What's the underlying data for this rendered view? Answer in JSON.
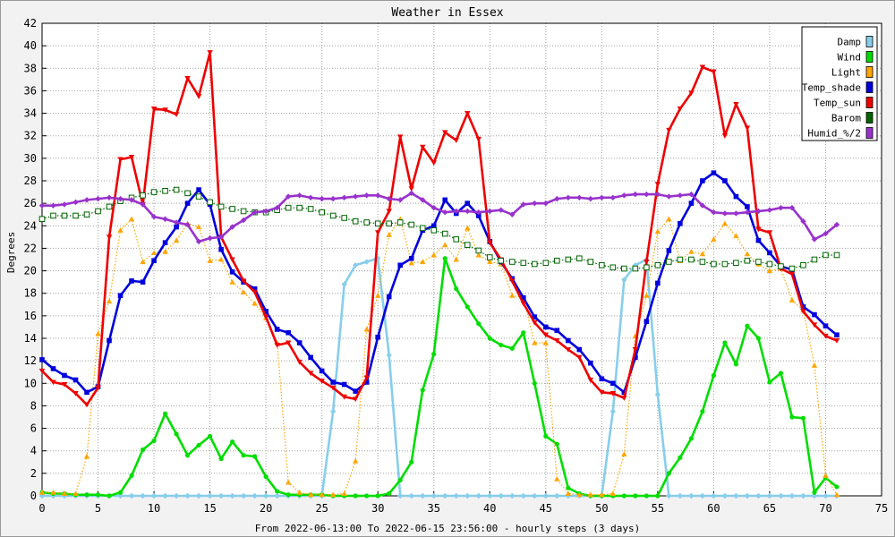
{
  "chart_data": {
    "type": "line",
    "title": "Weather in Essex",
    "xlabel": "From 2022-06-13:00 To 2022-06-15 23:56:00 - hourly steps (3 days)",
    "ylabel": "Degrees",
    "xlim": [
      0,
      75
    ],
    "ylim": [
      0,
      42
    ],
    "xticks": [
      0,
      5,
      10,
      15,
      20,
      25,
      30,
      35,
      40,
      45,
      50,
      55,
      60,
      65,
      70,
      75
    ],
    "yticks": [
      0,
      2,
      4,
      6,
      8,
      10,
      12,
      14,
      16,
      18,
      20,
      22,
      24,
      26,
      28,
      30,
      32,
      34,
      36,
      38,
      40,
      42
    ],
    "grid": true,
    "legend_position": "top-right",
    "series": [
      {
        "name": "Damp",
        "color": "#87ceeb",
        "marker": "diamond",
        "style": "solid",
        "values": [
          0,
          0,
          0,
          0,
          0,
          0,
          0,
          0,
          0,
          0,
          0,
          0,
          0,
          0,
          0,
          0,
          0,
          0,
          0,
          0,
          0,
          0,
          0,
          0,
          0,
          0,
          7.5,
          18.8,
          20.5,
          20.8,
          21.1,
          12.5,
          0,
          0,
          0,
          0,
          0,
          0,
          0,
          0,
          0,
          0,
          0,
          0,
          0,
          0,
          0,
          0,
          0,
          0,
          0,
          7.5,
          19.2,
          20.5,
          21.0,
          9,
          0,
          0,
          0,
          0,
          0,
          0,
          0,
          0,
          0,
          0,
          0,
          0,
          0,
          0,
          0,
          0
        ]
      },
      {
        "name": "Wind",
        "color": "#00dd00",
        "marker": "circle",
        "style": "solid",
        "values": [
          0.3,
          0.2,
          0.2,
          0.1,
          0.1,
          0.1,
          0.0,
          0.3,
          1.8,
          4.1,
          4.9,
          7.3,
          5.5,
          3.6,
          4.5,
          5.3,
          3.3,
          4.8,
          3.6,
          3.5,
          1.7,
          0.4,
          0.1,
          0.1,
          0.1,
          0.1,
          0.0,
          0.0,
          0.0,
          0.0,
          0.0,
          0.2,
          1.4,
          3.0,
          9.4,
          12.6,
          21.1,
          18.4,
          16.8,
          15.3,
          14.0,
          13.4,
          13.1,
          14.5,
          10.0,
          5.3,
          4.6,
          0.7,
          0.2,
          0.0,
          0.0,
          0.0,
          0.0,
          0.0,
          0.0,
          0.0,
          2.0,
          3.4,
          5.1,
          7.5,
          10.7,
          13.6,
          11.7,
          15.1,
          14.0,
          10.1,
          10.9,
          7.0,
          6.9,
          0.3,
          1.6,
          0.8
        ]
      },
      {
        "name": "Light",
        "color": "#ffa500",
        "marker": "triangle",
        "style": "dotted",
        "values": [
          0.3,
          0.3,
          0.2,
          0.2,
          3.5,
          14.4,
          17.3,
          23.6,
          24.6,
          20.8,
          21.6,
          21.7,
          22.7,
          24.2,
          23.9,
          20.9,
          21.0,
          19.0,
          18.1,
          17.1,
          15.8,
          13.6,
          1.2,
          0.3,
          0.1,
          0.1,
          0.1,
          0.2,
          3.1,
          14.8,
          17.8,
          23.2,
          24.6,
          20.7,
          20.8,
          21.4,
          22.3,
          21.0,
          23.8,
          21.4,
          20.8,
          20.6,
          17.8,
          17.6,
          13.6,
          13.6,
          1.5,
          0.2,
          0.1,
          0.1,
          0.1,
          0.2,
          3.7,
          14.2,
          17.8,
          23.5,
          24.6,
          20.9,
          21.7,
          21.5,
          22.8,
          24.2,
          23.1,
          21.5,
          20.6,
          20.0,
          20.2,
          17.4,
          16.5,
          11.6,
          1.8,
          0.1
        ]
      },
      {
        "name": "Temp_shade",
        "color": "#0000dd",
        "marker": "square",
        "style": "solid",
        "values": [
          12.1,
          11.3,
          10.7,
          10.3,
          9.2,
          9.7,
          13.8,
          17.8,
          19.1,
          19.0,
          20.9,
          22.5,
          23.9,
          26.0,
          27.2,
          25.9,
          21.9,
          19.9,
          19.0,
          18.4,
          16.4,
          14.8,
          14.5,
          13.6,
          12.3,
          11.1,
          10.1,
          9.9,
          9.3,
          10.1,
          14.1,
          17.7,
          20.5,
          21.1,
          23.6,
          24.0,
          26.3,
          25.1,
          26.0,
          24.9,
          22.6,
          20.8,
          19.3,
          17.6,
          15.9,
          15.0,
          14.7,
          13.8,
          13.0,
          11.8,
          10.4,
          10.0,
          9.2,
          12.3,
          15.5,
          18.9,
          21.8,
          24.2,
          26.0,
          28.0,
          28.7,
          28.0,
          26.6,
          25.7,
          22.7,
          21.6,
          20.4,
          20.1,
          16.8,
          16.1,
          15.1,
          14.3
        ]
      },
      {
        "name": "Temp_sun",
        "color": "#ee0000",
        "marker": "triangle-down",
        "style": "solid",
        "values": [
          11.1,
          10.1,
          9.9,
          9.1,
          8.1,
          9.6,
          23.0,
          29.9,
          30.1,
          25.9,
          34.4,
          34.3,
          33.9,
          37.1,
          35.5,
          39.4,
          23.0,
          21.0,
          19.1,
          18.1,
          15.9,
          13.4,
          13.6,
          11.9,
          10.9,
          10.2,
          9.6,
          8.8,
          8.6,
          10.5,
          23.4,
          25.3,
          31.9,
          27.3,
          31.0,
          29.6,
          32.3,
          31.6,
          34.0,
          31.7,
          22.5,
          21.0,
          19.1,
          17.1,
          15.4,
          14.3,
          13.8,
          13.0,
          12.3,
          10.3,
          9.2,
          9.1,
          8.7,
          13.0,
          20.8,
          27.7,
          32.5,
          34.4,
          35.8,
          38.1,
          37.7,
          32.0,
          34.8,
          32.7,
          23.7,
          23.4,
          20.2,
          19.7,
          16.4,
          15.2,
          14.2,
          13.8
        ]
      },
      {
        "name": "Barom",
        "color": "#006400",
        "marker": "open-square",
        "style": "dotted",
        "values": [
          24.6,
          24.9,
          24.9,
          24.9,
          25.0,
          25.3,
          25.7,
          26.2,
          26.5,
          26.7,
          27.0,
          27.1,
          27.2,
          26.9,
          26.6,
          26.1,
          25.7,
          25.5,
          25.3,
          25.2,
          25.2,
          25.4,
          25.6,
          25.6,
          25.5,
          25.2,
          24.9,
          24.7,
          24.4,
          24.3,
          24.2,
          24.2,
          24.3,
          24.1,
          23.8,
          23.6,
          23.3,
          22.8,
          22.3,
          21.8,
          21.2,
          20.9,
          20.8,
          20.7,
          20.6,
          20.7,
          20.9,
          21.0,
          21.1,
          20.8,
          20.5,
          20.3,
          20.2,
          20.2,
          20.3,
          20.5,
          20.8,
          21.0,
          21.0,
          20.8,
          20.6,
          20.6,
          20.7,
          20.9,
          20.8,
          20.6,
          20.4,
          20.2,
          20.5,
          21.0,
          21.4,
          21.4
        ]
      },
      {
        "name": "Humid_%/2",
        "color": "#9932cc",
        "marker": "diamond",
        "style": "solid",
        "values": [
          25.8,
          25.8,
          25.9,
          26.1,
          26.3,
          26.4,
          26.5,
          26.4,
          26.3,
          25.9,
          24.8,
          24.6,
          24.3,
          24.1,
          22.6,
          22.9,
          23.0,
          23.9,
          24.5,
          25.2,
          25.3,
          25.6,
          26.6,
          26.7,
          26.5,
          26.4,
          26.4,
          26.5,
          26.6,
          26.7,
          26.7,
          26.4,
          26.3,
          26.9,
          26.3,
          25.6,
          25.2,
          25.3,
          25.3,
          25.2,
          25.3,
          25.4,
          25.0,
          25.9,
          26.0,
          26.0,
          26.4,
          26.5,
          26.5,
          26.4,
          26.5,
          26.5,
          26.7,
          26.8,
          26.8,
          26.8,
          26.6,
          26.7,
          26.8,
          25.8,
          25.2,
          25.1,
          25.1,
          25.2,
          25.3,
          25.4,
          25.6,
          25.6,
          24.4,
          22.8,
          23.3,
          24.1
        ]
      }
    ]
  }
}
